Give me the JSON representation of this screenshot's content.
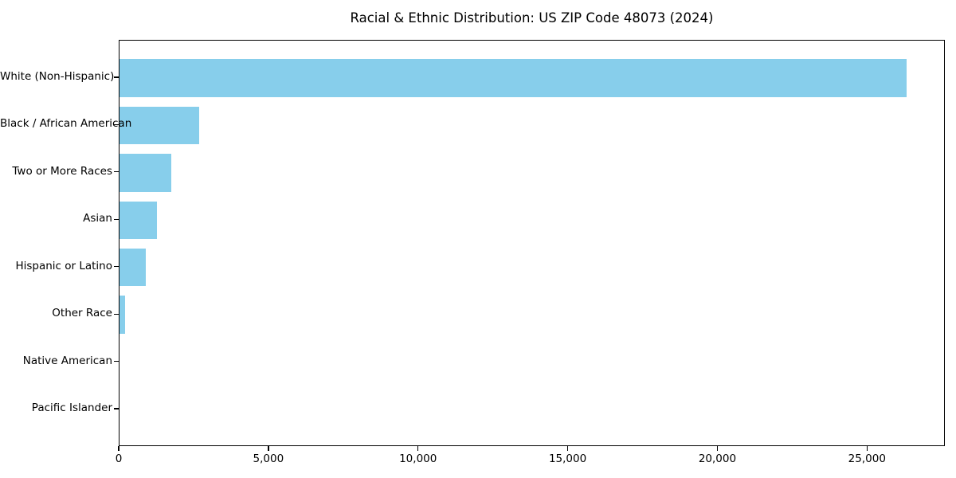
{
  "title": "Racial & Ethnic Distribution: US ZIP Code 48073 (2024)",
  "colors": {
    "bar": "#87CEEB",
    "text": "#000000",
    "spine": "#000000",
    "background": "#FFFFFF"
  },
  "chart_data": {
    "type": "bar",
    "orientation": "horizontal",
    "title": "Racial & Ethnic Distribution: US ZIP Code 48073 (2024)",
    "categories": [
      "White (Non-Hispanic)",
      "Black / African American",
      "Two or More Races",
      "Asian",
      "Hispanic or Latino",
      "Other Race",
      "Native American",
      "Pacific Islander"
    ],
    "values": [
      26300,
      2660,
      1720,
      1250,
      880,
      180,
      0,
      0
    ],
    "xlabel": "",
    "ylabel": "",
    "xlim": [
      0,
      27600
    ],
    "xticks": [
      0,
      5000,
      10000,
      15000,
      20000,
      25000
    ],
    "xtick_labels": [
      "0",
      "5,000",
      "10,000",
      "15,000",
      "20,000",
      "25,000"
    ],
    "grid": false,
    "legend": false,
    "bar_color": "#87CEEB",
    "bar_order_note": "top to bottom, sorted descending"
  }
}
